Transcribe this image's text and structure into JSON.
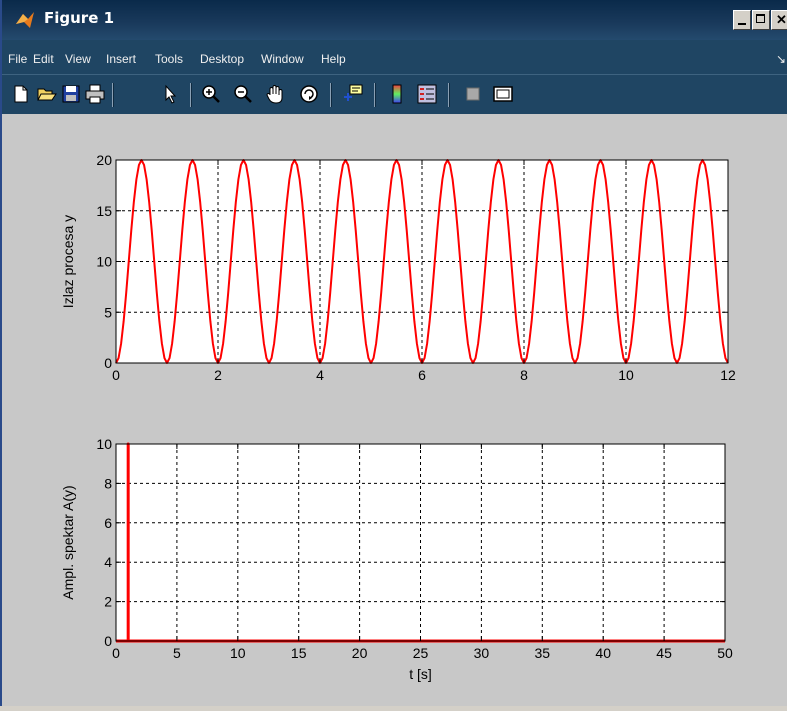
{
  "window": {
    "title": "Figure 1",
    "menu": [
      "File",
      "Edit",
      "View",
      "Insert",
      "Tools",
      "Desktop",
      "Window",
      "Help"
    ],
    "toolbar_icons": [
      "new-file-icon",
      "open-file-icon",
      "save-icon",
      "print-icon",
      "arrow-cursor-icon",
      "zoom-in-icon",
      "zoom-out-icon",
      "pan-hand-icon",
      "rotate-3d-icon",
      "data-cursor-icon",
      "colorbar-icon",
      "legend-icon",
      "hide-plot-tools-icon",
      "show-plot-tools-icon"
    ]
  },
  "chart_data": [
    {
      "type": "line",
      "ylabel": "Izlaz procesa y",
      "xlabel": "",
      "xlim": [
        0,
        12
      ],
      "ylim": [
        0,
        20
      ],
      "xticks": [
        0,
        2,
        4,
        6,
        8,
        10,
        12
      ],
      "yticks": [
        0,
        5,
        10,
        15,
        20
      ],
      "grid": true,
      "series": [
        {
          "function": "y = 10 - 10*cos(2*pi*t)",
          "color": "#ff0000",
          "x_range": [
            0,
            12
          ],
          "samples": 241
        }
      ]
    },
    {
      "type": "line",
      "ylabel": "Ampl. spektar A(y)",
      "xlabel": "t [s]",
      "xlim": [
        0,
        50
      ],
      "ylim": [
        0,
        10
      ],
      "xticks": [
        0,
        5,
        10,
        15,
        20,
        25,
        30,
        35,
        40,
        45,
        50
      ],
      "yticks": [
        0,
        2,
        4,
        6,
        8,
        10
      ],
      "grid": true,
      "series": [
        {
          "color": "#ff0000",
          "x": [
            0,
            1,
            1,
            1,
            50
          ],
          "y": [
            0,
            0,
            10,
            0,
            0
          ]
        }
      ]
    }
  ]
}
